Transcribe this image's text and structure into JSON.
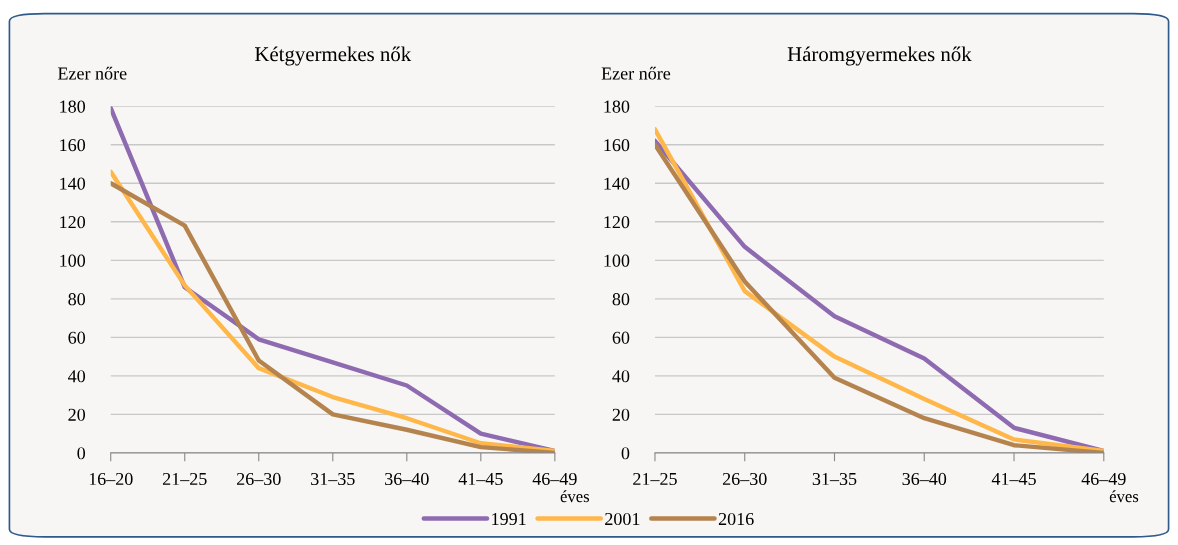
{
  "chart_data": [
    {
      "type": "line",
      "title": "Kétgyermekes nők",
      "ylabel": "Ezer nőre",
      "xlabel": "éves",
      "categories": [
        "16–20",
        "21–25",
        "26–30",
        "31–35",
        "36–40",
        "41–45",
        "46–49"
      ],
      "series": [
        {
          "name": "1991",
          "color": "#8e6bb0",
          "values": [
            179,
            86,
            59,
            47,
            35,
            10,
            1
          ]
        },
        {
          "name": "2001",
          "color": "#ffb74a",
          "values": [
            146,
            87,
            44,
            29,
            18,
            5,
            1
          ]
        },
        {
          "name": "2016",
          "color": "#b5844e",
          "values": [
            140,
            118,
            48,
            20,
            12,
            3,
            0
          ]
        }
      ],
      "ylim": [
        0,
        180
      ],
      "yticks": [
        0,
        20,
        40,
        60,
        80,
        100,
        120,
        140,
        160,
        180
      ],
      "grid": "y",
      "legend": "bottom"
    },
    {
      "type": "line",
      "title": "Háromgyermekes nők",
      "ylabel": "Ezer nőre",
      "xlabel": "éves",
      "categories": [
        "21–25",
        "26–30",
        "31–35",
        "36–40",
        "41–45",
        "46–49"
      ],
      "series": [
        {
          "name": "1991",
          "color": "#8e6bb0",
          "values": [
            162,
            107,
            71,
            49,
            13,
            1
          ]
        },
        {
          "name": "2001",
          "color": "#ffb74a",
          "values": [
            168,
            84,
            50,
            28,
            7,
            1
          ]
        },
        {
          "name": "2016",
          "color": "#b5844e",
          "values": [
            160,
            89,
            39,
            18,
            4,
            0
          ]
        }
      ],
      "ylim": [
        0,
        180
      ],
      "yticks": [
        0,
        20,
        40,
        60,
        80,
        100,
        120,
        140,
        160,
        180
      ],
      "grid": "y",
      "legend": "bottom"
    }
  ]
}
